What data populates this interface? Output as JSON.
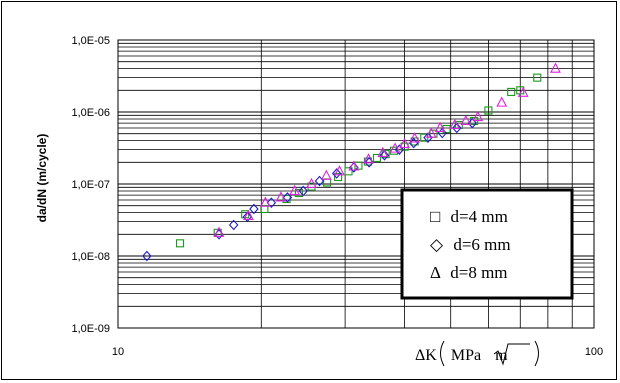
{
  "chart_data": {
    "type": "scatter",
    "xscale": "log",
    "yscale": "log",
    "xlim": [
      10,
      100
    ],
    "ylim": [
      1e-09,
      1e-05
    ],
    "grid": true,
    "legend_position": "bottom-right",
    "x_ticks": [
      "10",
      "100"
    ],
    "y_ticks": [
      "1,0E-09",
      "1,0E-08",
      "1,0E-07",
      "1,0E-06",
      "1,0E-05"
    ],
    "ylabel": "da/dN (m/cycle)",
    "xlabel": "ΔK (MPa√m)",
    "xlabel_prefix": "ΔK",
    "xlabel_unit": "MPa",
    "xlabel_root": "m",
    "series": [
      {
        "name": "d=4 mm",
        "legend_symbol": "□",
        "marker": "square",
        "color": "#1a9a1a",
        "x": [
          13.5,
          16.2,
          18.5,
          20.3,
          22.6,
          24.0,
          25.5,
          27.5,
          29.0,
          30.5,
          32.0,
          33.5,
          35.0,
          36.5,
          38.0,
          40.0,
          42.0,
          44.0,
          46.0,
          49.0,
          52.0,
          56.0,
          60.0,
          67.0,
          70.0,
          76.0
        ],
        "y": [
          1.5e-08,
          2.1e-08,
          3.8e-08,
          4.5e-08,
          6.2e-08,
          7.5e-08,
          9.2e-08,
          1.05e-07,
          1.25e-07,
          1.5e-07,
          1.8e-07,
          2.05e-07,
          2.3e-07,
          2.6e-07,
          2.9e-07,
          3.3e-07,
          3.9e-07,
          4.4e-07,
          5e-07,
          5.8e-07,
          6.6e-07,
          7.5e-07,
          1.05e-06,
          1.9e-06,
          2e-06,
          3e-06
        ]
      },
      {
        "name": "d=6 mm",
        "legend_symbol": "◇",
        "marker": "diamond",
        "color": "#1a1acc",
        "x": [
          11.5,
          16.3,
          17.5,
          18.7,
          19.3,
          21.0,
          22.7,
          24.5,
          26.5,
          28.8,
          31.3,
          33.7,
          36.3,
          39.0,
          41.8,
          44.8,
          48.0,
          51.5,
          55.5
        ],
        "y": [
          1e-08,
          2e-08,
          2.7e-08,
          3.5e-08,
          4.5e-08,
          5.5e-08,
          6.5e-08,
          8e-08,
          1.1e-07,
          1.4e-07,
          1.7e-07,
          2e-07,
          2.5e-07,
          3e-07,
          3.7e-07,
          4.4e-07,
          5.1e-07,
          6e-07,
          7e-07
        ]
      },
      {
        "name": "d=8 mm",
        "legend_symbol": "Δ",
        "marker": "triangle",
        "color": "#e020e0",
        "x": [
          16.3,
          18.8,
          20.4,
          22.0,
          23.5,
          25.5,
          27.4,
          29.2,
          31.3,
          33.6,
          36.0,
          38.2,
          40.0,
          42.0,
          45.5,
          47.5,
          51.0,
          53.8,
          57.0,
          64.0,
          71.0,
          83.0
        ],
        "y": [
          2.1e-08,
          3.6e-08,
          5.5e-08,
          6.5e-08,
          8e-08,
          1e-07,
          1.3e-07,
          1.5e-07,
          1.75e-07,
          2.2e-07,
          2.7e-07,
          3.1e-07,
          3.6e-07,
          4.3e-07,
          5e-07,
          6e-07,
          6.6e-07,
          7.5e-07,
          8.5e-07,
          1.35e-06,
          1.85e-06,
          4e-06
        ]
      }
    ]
  }
}
